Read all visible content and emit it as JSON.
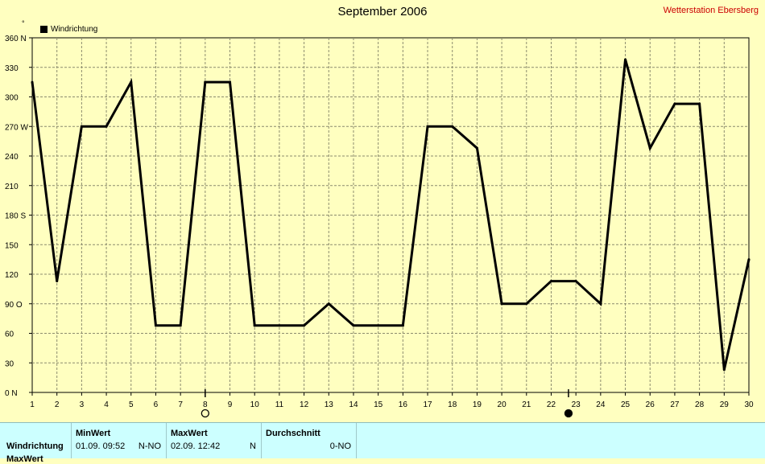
{
  "header": {
    "title": "September 2006",
    "station": "Wetterstation Ebersberg",
    "unit_mark": "°"
  },
  "legend": {
    "label": "Windrichtung"
  },
  "stats": {
    "row_label": "Windrichtung",
    "next_row_label": "MaxWert",
    "min": {
      "label": "MinWert",
      "date": "01.09.",
      "time": "09:52",
      "dir": "N-NO"
    },
    "max": {
      "label": "MaxWert",
      "date": "02.09.",
      "time": "12:42",
      "dir": "N"
    },
    "avg": {
      "label": "Durchschnitt",
      "dir": "0-NO"
    }
  },
  "colors": {
    "background": "#ffffc0",
    "grid": "#8c8c6e",
    "line": "#000000",
    "station": "#cc0000",
    "stats_bg": "#ccffff"
  },
  "moon_phases": [
    {
      "day": 8,
      "icon": "full-moon-icon"
    },
    {
      "day": 22.7,
      "icon": "new-moon-icon"
    }
  ],
  "chart_data": {
    "type": "line",
    "title": "September 2006",
    "x": [
      1,
      2,
      3,
      4,
      5,
      6,
      7,
      8,
      9,
      10,
      11,
      12,
      13,
      14,
      15,
      16,
      17,
      18,
      19,
      20,
      21,
      22,
      23,
      24,
      25,
      26,
      27,
      28,
      29,
      30
    ],
    "series": [
      {
        "name": "Windrichtung",
        "values": [
          315,
          113,
          270,
          270,
          315,
          68,
          68,
          315,
          315,
          68,
          68,
          68,
          90,
          68,
          68,
          68,
          270,
          270,
          248,
          90,
          90,
          113,
          113,
          90,
          338,
          248,
          293,
          293,
          23,
          135
        ]
      }
    ],
    "xticks": [
      "1",
      "2",
      "3",
      "4",
      "5",
      "6",
      "7",
      "8",
      "9",
      "10",
      "11",
      "12",
      "13",
      "14",
      "15",
      "16",
      "17",
      "18",
      "19",
      "20",
      "21",
      "22",
      "23",
      "24",
      "25",
      "26",
      "27",
      "28",
      "29",
      "30"
    ],
    "yticks": [
      "0 N",
      "30",
      "60",
      "90  O",
      "120",
      "150",
      "180 S",
      "210",
      "240",
      "270 W",
      "300",
      "330",
      "360 N"
    ],
    "ylim": [
      0,
      360
    ],
    "xlim": [
      1,
      30
    ],
    "grid": true,
    "legend_position": "top-left"
  }
}
